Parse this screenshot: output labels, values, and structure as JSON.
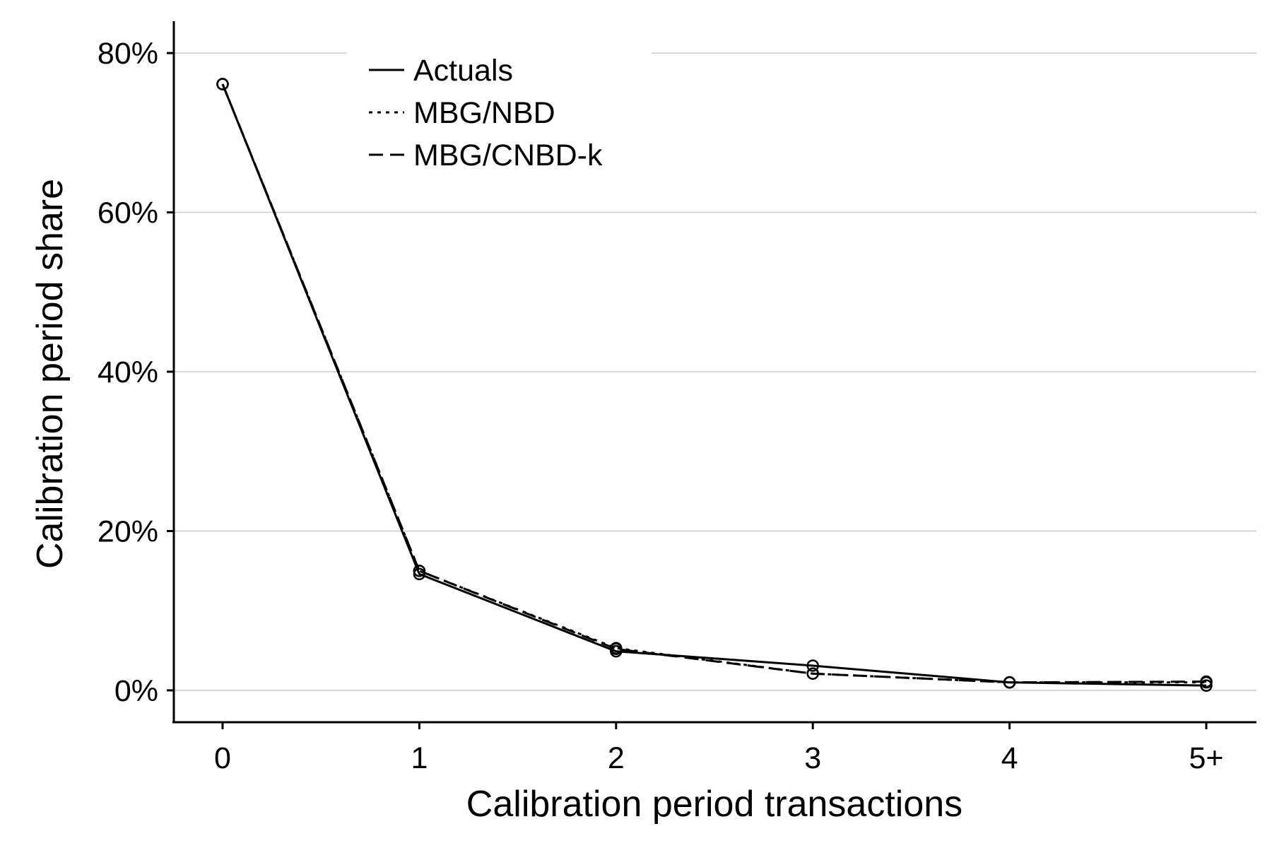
{
  "chart_data": {
    "type": "line",
    "xlabel": "Calibration period transactions",
    "ylabel": "Calibration period share",
    "categories": [
      "0",
      "1",
      "2",
      "3",
      "4",
      "5+"
    ],
    "y_ticks": [
      "0%",
      "20%",
      "40%",
      "60%",
      "80%"
    ],
    "y_tick_values": [
      0,
      20,
      40,
      60,
      80
    ],
    "ylim": [
      -4,
      84
    ],
    "grid": "horizontal",
    "legend_position": "top-left",
    "series": [
      {
        "name": "Actuals",
        "style": "solid",
        "values": [
          76.1,
          14.6,
          4.9,
          3.1,
          1.0,
          0.6
        ]
      },
      {
        "name": "MBG/NBD",
        "style": "dotted",
        "values": [
          76.1,
          15.0,
          5.3,
          2.1,
          1.0,
          1.0
        ]
      },
      {
        "name": "MBG/CNBD-k",
        "style": "dashed",
        "values": [
          76.1,
          15.0,
          5.2,
          2.1,
          1.0,
          1.1
        ]
      }
    ],
    "marker": "open-circle",
    "line_color": "#000000",
    "grid_color": "#c8c8c8"
  }
}
